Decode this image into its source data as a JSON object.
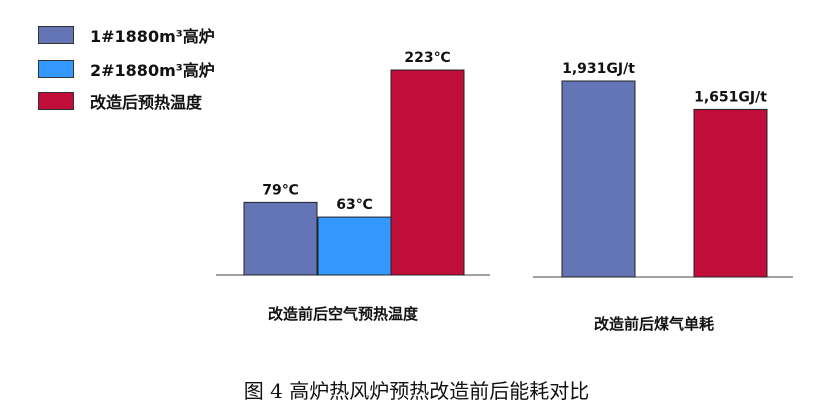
{
  "legend": [
    {
      "label": "1#1880m³高炉",
      "color": "#6375b5"
    },
    {
      "label": "2#1880m³高炉",
      "color": "#3399ff"
    },
    {
      "label": "改造后预热温度",
      "color": "#c00d3a"
    }
  ],
  "caption": "图 4    高炉热风炉预热改造前后能耗对比",
  "chart_data": [
    {
      "type": "bar",
      "xlabel": "改造前后空气预热温度",
      "unit": "℃",
      "series": [
        {
          "name": "1#1880m³高炉",
          "value": 79,
          "label": "79℃",
          "color": "#6375b5"
        },
        {
          "name": "2#1880m³高炉",
          "value": 63,
          "label": "63℃",
          "color": "#3399ff"
        },
        {
          "name": "改造后预热温度",
          "value": 223,
          "label": "223℃",
          "color": "#c00d3a"
        }
      ]
    },
    {
      "type": "bar",
      "xlabel": "改造前后煤气单耗",
      "unit": "GJ/t",
      "series": [
        {
          "value": 1931,
          "label": "1,931GJ/t",
          "color": "#6375b5"
        },
        {
          "value": 1651,
          "label": "1,651GJ/t",
          "color": "#c00d3a"
        }
      ]
    }
  ]
}
